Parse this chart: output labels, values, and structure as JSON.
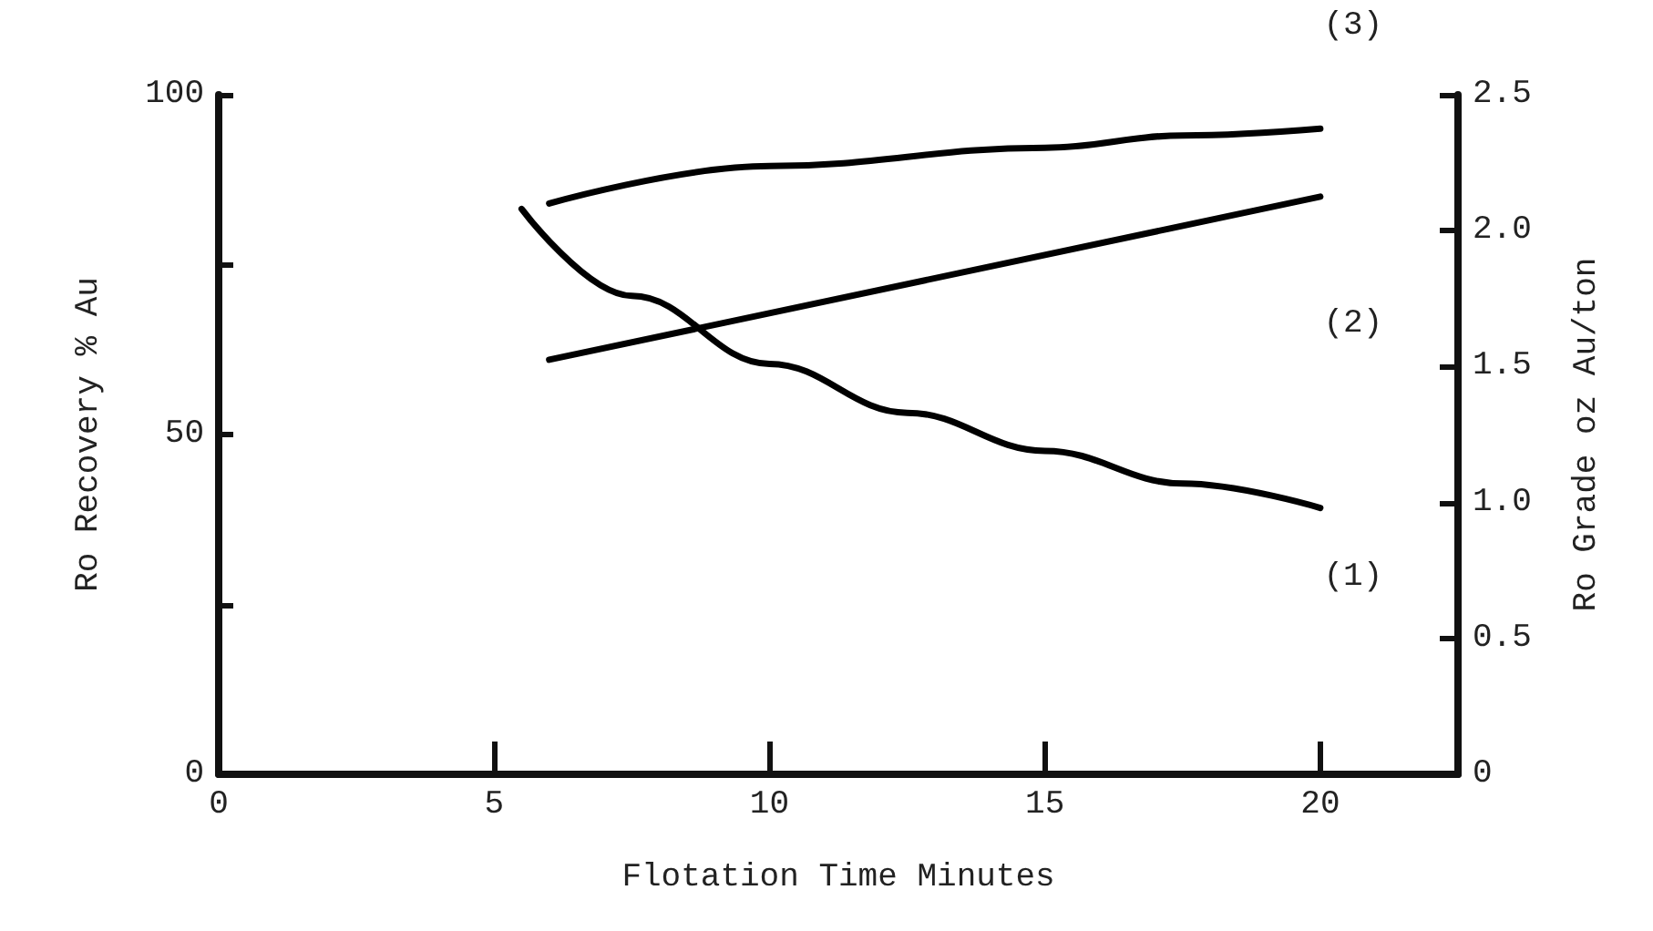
{
  "chart_data": {
    "type": "line",
    "xlabel": "Flotation Time Minutes",
    "ylabel": "Ro Recovery % Au",
    "y2label": "Ro Grade oz Au/ton",
    "xlim": [
      0,
      22.5
    ],
    "xticks": [
      0,
      5,
      10,
      15,
      20
    ],
    "ylim": [
      0,
      100
    ],
    "yticks": [
      0,
      {
        "value": 25,
        "label": null
      },
      50,
      {
        "value": 75,
        "label": null
      },
      100
    ],
    "y2lim": [
      0,
      2.5
    ],
    "y2ticks": [
      {
        "value": 0,
        "label": "0"
      },
      0.5,
      {
        "value": 1,
        "label": "1.0"
      },
      1.5,
      {
        "value": 2,
        "label": "2.0"
      },
      2.5
    ],
    "grid": false,
    "marker": "none",
    "line_style": "solid",
    "series": [
      {
        "color": "#000000",
        "axis": "y2",
        "x": [
          5.5,
          7.5,
          10,
          12.5,
          15,
          17.5,
          20
        ],
        "values": [
          2.08,
          1.76,
          1.51,
          1.33,
          1.19,
          1.07,
          0.98
        ]
      },
      {
        "color": "#000000",
        "x": [
          6,
          20
        ],
        "values": [
          61,
          85
        ]
      },
      {
        "color": "#000000",
        "x": [
          6,
          10,
          15,
          17.5,
          20
        ],
        "values": [
          84,
          89.5,
          92.2,
          94,
          95
        ]
      }
    ],
    "annotations": [
      "(1)",
      "(2)",
      "(3)"
    ]
  }
}
